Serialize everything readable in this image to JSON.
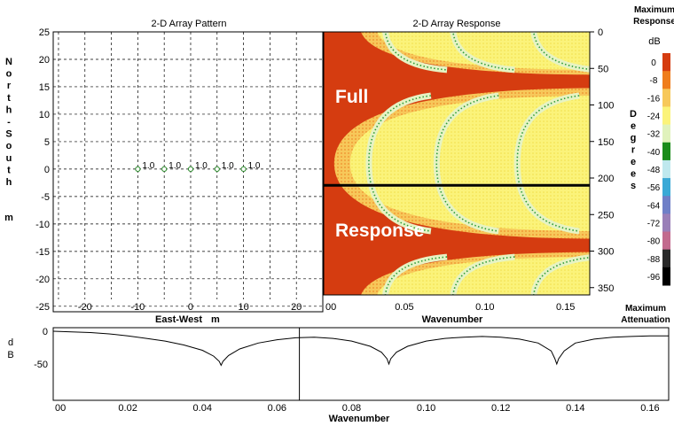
{
  "chart_data": [
    {
      "type": "scatter",
      "title": "2-D Array Pattern",
      "xlabel": "East-West",
      "xlabel_unit": "m",
      "ylabel_letters": [
        "N",
        "o",
        "r",
        "t",
        "h",
        "-",
        "S",
        "o",
        "u",
        "t",
        "h",
        "m"
      ],
      "xlim": [
        -26,
        25
      ],
      "ylim": [
        -26,
        25
      ],
      "x_ticks": [
        -20,
        -10,
        0,
        10,
        20
      ],
      "y_ticks": [
        25,
        20,
        15,
        10,
        5,
        0,
        -5,
        -10,
        -15,
        -20,
        -25
      ],
      "grid": true,
      "points": [
        {
          "x": -10,
          "y": 0,
          "label": "1.0"
        },
        {
          "x": -5,
          "y": 0,
          "label": "1.0"
        },
        {
          "x": 0,
          "y": 0,
          "label": "1.0"
        },
        {
          "x": 5,
          "y": 0,
          "label": "1.0"
        },
        {
          "x": 10,
          "y": 0,
          "label": "1.0"
        }
      ]
    },
    {
      "type": "heatmap",
      "title": "2-D Array Response",
      "xlabel": "Wavenumber",
      "ylabel_letters": [
        "D",
        "e",
        "g",
        "r",
        "e",
        "e",
        "s"
      ],
      "xlim": [
        0,
        0.165
      ],
      "ylim": [
        0,
        360
      ],
      "x_ticks": [
        "00",
        "0.05",
        "0.10",
        "0.15"
      ],
      "y_ticks": [
        0,
        50,
        100,
        150,
        200,
        250,
        300,
        350
      ],
      "slice_degrees": 210,
      "annotations": [
        "Full",
        "Response"
      ],
      "colorbar": {
        "top_label": "Maximum Response",
        "unit": "dB",
        "bottom_label": "Maximum Attenuation",
        "ticks": [
          "0",
          "-8",
          "-16",
          "-24",
          "-32",
          "-40",
          "-48",
          "-56",
          "-64",
          "-72",
          "-80",
          "-88",
          "-96"
        ],
        "colors": [
          "#d53c10",
          "#ef7d1c",
          "#f7c85a",
          "#fbf37a",
          "#e0f2bc",
          "#1a8c1a",
          "#bfe8ee",
          "#3aa9d6",
          "#6f7fc7",
          "#9a7fb8",
          "#c26a8e",
          "#2a2a2a",
          "#000000"
        ]
      }
    },
    {
      "type": "line",
      "ylabel": "dB",
      "xlabel": "Wavenumber",
      "xlim": [
        0,
        0.165
      ],
      "ylim": [
        -100,
        0
      ],
      "x_ticks": [
        "00",
        "0.02",
        "0.04",
        "0.06",
        "0.08",
        "0.10",
        "0.12",
        "0.14",
        "0.16"
      ],
      "y_ticks": [
        0,
        -50
      ],
      "cursor_x": 0.066,
      "x": [
        0,
        0.005,
        0.01,
        0.015,
        0.02,
        0.025,
        0.03,
        0.035,
        0.04,
        0.043,
        0.0445,
        0.045,
        0.0455,
        0.047,
        0.05,
        0.055,
        0.06,
        0.065,
        0.07,
        0.075,
        0.08,
        0.085,
        0.088,
        0.0895,
        0.09,
        0.0905,
        0.092,
        0.095,
        0.1,
        0.105,
        0.11,
        0.115,
        0.12,
        0.125,
        0.13,
        0.1335,
        0.1345,
        0.135,
        0.1355,
        0.137,
        0.14,
        0.145,
        0.15,
        0.155,
        0.16,
        0.165
      ],
      "values": [
        0,
        -1,
        -2,
        -4,
        -7,
        -11,
        -15,
        -21,
        -29,
        -38,
        -46,
        -52,
        -46,
        -37,
        -27,
        -18,
        -13,
        -10,
        -9,
        -11,
        -15,
        -23,
        -32,
        -42,
        -50,
        -42,
        -32,
        -23,
        -15,
        -11,
        -9,
        -8,
        -9,
        -12,
        -18,
        -30,
        -42,
        -50,
        -42,
        -30,
        -18,
        -12,
        -9,
        -8,
        -7,
        -7
      ]
    }
  ]
}
